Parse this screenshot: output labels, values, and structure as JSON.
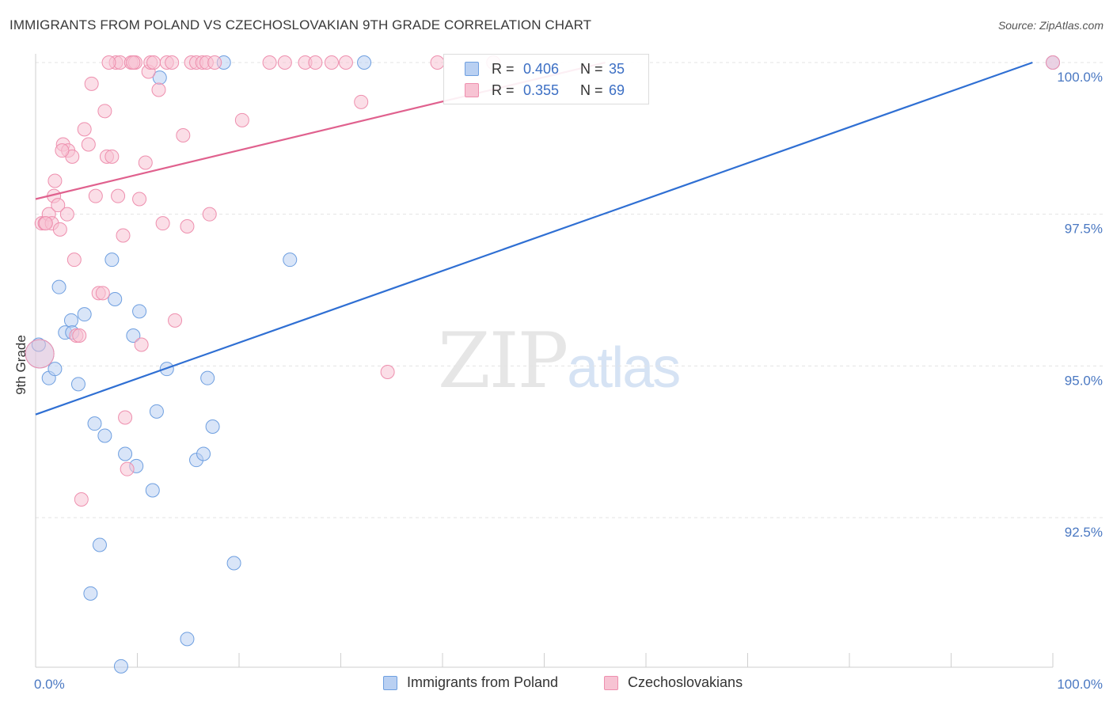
{
  "header": {
    "title": "IMMIGRANTS FROM POLAND VS CZECHOSLOVAKIAN 9TH GRADE CORRELATION CHART",
    "source": "Source: ZipAtlas.com"
  },
  "watermark": {
    "zip": "ZIP",
    "atlas": "atlas"
  },
  "colors": {
    "blue_fill": "#b9d0f2",
    "blue_stroke": "#6e9fe0",
    "blue_line": "#2f6fd3",
    "pink_fill": "#f7c3d3",
    "pink_stroke": "#ee8fae",
    "pink_line": "#e0618e",
    "grid": "#e3e3e3",
    "tick_text": "#4a78c2"
  },
  "legend": {
    "rows": [
      {
        "r_label": "R =",
        "r_value": "0.406",
        "n_label": "N =",
        "n_value": "35"
      },
      {
        "r_label": "R =",
        "r_value": "0.355",
        "n_label": "N =",
        "n_value": "69"
      }
    ]
  },
  "bottom_legend": {
    "series1": "Immigrants from Poland",
    "series2": "Czechoslovakians"
  },
  "chart_data": {
    "type": "scatter",
    "title": "IMMIGRANTS FROM POLAND VS CZECHOSLOVAKIAN 9TH GRADE CORRELATION CHART",
    "xlabel": "",
    "ylabel": "9th Grade",
    "xlim": [
      0,
      100
    ],
    "ylim": [
      90.0,
      100.2
    ],
    "x_tick_labels": [
      "0.0%",
      "100.0%"
    ],
    "y_ticks": [
      {
        "value": 100.0,
        "label": "100.0%"
      },
      {
        "value": 97.5,
        "label": "97.5%"
      },
      {
        "value": 95.0,
        "label": "95.0%"
      },
      {
        "value": 92.5,
        "label": "92.5%"
      }
    ],
    "series": [
      {
        "name": "Immigrants from Poland",
        "color": "#6e9fe0",
        "r": 0.406,
        "n": 35,
        "trend": {
          "x": [
            0,
            98
          ],
          "y": [
            94.2,
            100.0
          ]
        },
        "points": [
          {
            "x": 0.4,
            "y": 95.2,
            "big": true
          },
          {
            "x": 0.3,
            "y": 95.35
          },
          {
            "x": 1.3,
            "y": 94.8
          },
          {
            "x": 1.9,
            "y": 94.95
          },
          {
            "x": 2.3,
            "y": 96.3
          },
          {
            "x": 2.9,
            "y": 95.55
          },
          {
            "x": 3.5,
            "y": 95.75
          },
          {
            "x": 4.2,
            "y": 94.7
          },
          {
            "x": 4.8,
            "y": 95.85
          },
          {
            "x": 5.8,
            "y": 94.05
          },
          {
            "x": 6.8,
            "y": 93.85
          },
          {
            "x": 7.5,
            "y": 96.75
          },
          {
            "x": 7.8,
            "y": 96.1
          },
          {
            "x": 8.8,
            "y": 93.55
          },
          {
            "x": 9.6,
            "y": 95.5
          },
          {
            "x": 9.9,
            "y": 93.35
          },
          {
            "x": 10.2,
            "y": 95.9
          },
          {
            "x": 11.5,
            "y": 92.95
          },
          {
            "x": 11.9,
            "y": 94.25
          },
          {
            "x": 12.2,
            "y": 99.75
          },
          {
            "x": 12.9,
            "y": 94.95
          },
          {
            "x": 15.8,
            "y": 93.45
          },
          {
            "x": 16.5,
            "y": 93.55
          },
          {
            "x": 16.9,
            "y": 94.8
          },
          {
            "x": 17.4,
            "y": 94.0
          },
          {
            "x": 18.5,
            "y": 100.0
          },
          {
            "x": 19.5,
            "y": 91.75
          },
          {
            "x": 25.0,
            "y": 96.75
          },
          {
            "x": 32.3,
            "y": 100.0
          },
          {
            "x": 100.0,
            "y": 100.0
          },
          {
            "x": 6.3,
            "y": 92.05
          },
          {
            "x": 5.4,
            "y": 91.25
          },
          {
            "x": 14.9,
            "y": 90.5
          },
          {
            "x": 8.4,
            "y": 90.05
          },
          {
            "x": 3.6,
            "y": 95.55
          }
        ]
      },
      {
        "name": "Czechoslovakians",
        "color": "#ee8fae",
        "r": 0.355,
        "n": 69,
        "trend": {
          "x": [
            0,
            56
          ],
          "y": [
            97.75,
            100.0
          ]
        },
        "points": [
          {
            "x": 0.4,
            "y": 95.2,
            "big": true
          },
          {
            "x": 0.6,
            "y": 97.35
          },
          {
            "x": 0.9,
            "y": 97.35
          },
          {
            "x": 1.3,
            "y": 97.5
          },
          {
            "x": 1.6,
            "y": 97.35
          },
          {
            "x": 1.8,
            "y": 97.8
          },
          {
            "x": 1.9,
            "y": 98.05
          },
          {
            "x": 2.2,
            "y": 97.65
          },
          {
            "x": 2.4,
            "y": 97.25
          },
          {
            "x": 2.7,
            "y": 98.65
          },
          {
            "x": 3.1,
            "y": 97.5
          },
          {
            "x": 3.2,
            "y": 98.55
          },
          {
            "x": 3.6,
            "y": 98.45
          },
          {
            "x": 3.8,
            "y": 96.75
          },
          {
            "x": 4.0,
            "y": 95.5
          },
          {
            "x": 4.3,
            "y": 95.5
          },
          {
            "x": 4.5,
            "y": 92.8
          },
          {
            "x": 4.8,
            "y": 98.9
          },
          {
            "x": 5.2,
            "y": 98.65
          },
          {
            "x": 5.5,
            "y": 99.65
          },
          {
            "x": 5.9,
            "y": 97.8
          },
          {
            "x": 6.2,
            "y": 96.2
          },
          {
            "x": 6.6,
            "y": 96.2
          },
          {
            "x": 6.8,
            "y": 99.2
          },
          {
            "x": 7.0,
            "y": 98.45
          },
          {
            "x": 7.5,
            "y": 98.45
          },
          {
            "x": 7.9,
            "y": 100.0
          },
          {
            "x": 8.1,
            "y": 97.8
          },
          {
            "x": 8.3,
            "y": 100.0
          },
          {
            "x": 8.6,
            "y": 97.15
          },
          {
            "x": 8.8,
            "y": 94.15
          },
          {
            "x": 9.0,
            "y": 93.3
          },
          {
            "x": 9.4,
            "y": 100.0
          },
          {
            "x": 9.8,
            "y": 100.0
          },
          {
            "x": 10.2,
            "y": 97.75
          },
          {
            "x": 10.4,
            "y": 95.35
          },
          {
            "x": 10.8,
            "y": 98.35
          },
          {
            "x": 11.1,
            "y": 99.85
          },
          {
            "x": 11.3,
            "y": 100.0
          },
          {
            "x": 11.6,
            "y": 100.0
          },
          {
            "x": 12.1,
            "y": 99.55
          },
          {
            "x": 12.5,
            "y": 97.35
          },
          {
            "x": 12.9,
            "y": 100.0
          },
          {
            "x": 13.4,
            "y": 100.0
          },
          {
            "x": 13.7,
            "y": 95.75
          },
          {
            "x": 14.5,
            "y": 98.8
          },
          {
            "x": 14.9,
            "y": 97.3
          },
          {
            "x": 15.3,
            "y": 100.0
          },
          {
            "x": 15.8,
            "y": 100.0
          },
          {
            "x": 16.4,
            "y": 100.0
          },
          {
            "x": 16.8,
            "y": 100.0
          },
          {
            "x": 17.1,
            "y": 97.5
          },
          {
            "x": 17.6,
            "y": 100.0
          },
          {
            "x": 20.3,
            "y": 99.05
          },
          {
            "x": 23.0,
            "y": 100.0
          },
          {
            "x": 24.5,
            "y": 100.0
          },
          {
            "x": 26.5,
            "y": 100.0
          },
          {
            "x": 27.5,
            "y": 100.0
          },
          {
            "x": 29.1,
            "y": 100.0
          },
          {
            "x": 30.5,
            "y": 100.0
          },
          {
            "x": 32.0,
            "y": 99.35
          },
          {
            "x": 34.6,
            "y": 94.9
          },
          {
            "x": 39.5,
            "y": 100.0
          },
          {
            "x": 45.0,
            "y": 100.0
          },
          {
            "x": 100.0,
            "y": 100.0
          },
          {
            "x": 1.0,
            "y": 97.35
          },
          {
            "x": 2.6,
            "y": 98.55
          },
          {
            "x": 7.2,
            "y": 100.0
          },
          {
            "x": 9.6,
            "y": 100.0
          }
        ]
      }
    ]
  }
}
